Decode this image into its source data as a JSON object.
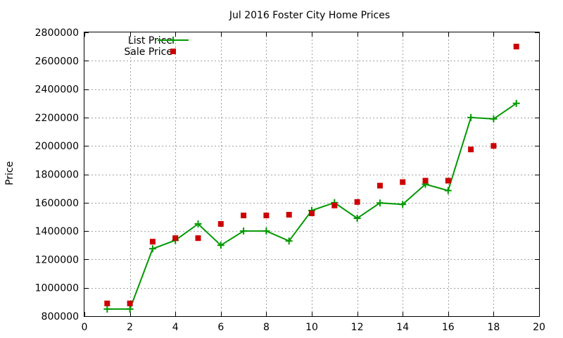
{
  "chart_data": {
    "type": "line",
    "title": "Jul 2016 Foster City Home Prices",
    "xlabel": "",
    "ylabel": "Price",
    "xlim": [
      0,
      20
    ],
    "ylim": [
      800000,
      2800000
    ],
    "xticks": [
      0,
      2,
      4,
      6,
      8,
      10,
      12,
      14,
      16,
      18,
      20
    ],
    "yticks": [
      800000,
      1000000,
      1200000,
      1400000,
      1600000,
      1800000,
      2000000,
      2200000,
      2400000,
      2600000,
      2800000
    ],
    "grid": true,
    "legend_position": "top-left",
    "series": [
      {
        "name": "List Price",
        "style": "line-with-plus-markers",
        "color": "#009900",
        "x": [
          1,
          2,
          3,
          4,
          5,
          6,
          7,
          8,
          9,
          10,
          11,
          12,
          13,
          14,
          15,
          16,
          17,
          18,
          19
        ],
        "values": [
          850000,
          850000,
          1275000,
          1335000,
          1450000,
          1300000,
          1400000,
          1400000,
          1330000,
          1545000,
          1600000,
          1490000,
          1598000,
          1588000,
          1730000,
          1685000,
          2200000,
          2190000,
          2300000
        ]
      },
      {
        "name": "Sale Price",
        "style": "square-markers",
        "color": "#cc0000",
        "x": [
          1,
          2,
          3,
          4,
          5,
          6,
          7,
          8,
          9,
          10,
          11,
          12,
          13,
          14,
          15,
          16,
          17,
          18,
          19
        ],
        "values": [
          890000,
          890000,
          1325000,
          1350000,
          1350000,
          1450000,
          1510000,
          1510000,
          1515000,
          1525000,
          1580000,
          1605000,
          1720000,
          1745000,
          1755000,
          1755000,
          1975000,
          2000000,
          2700000
        ]
      }
    ]
  }
}
